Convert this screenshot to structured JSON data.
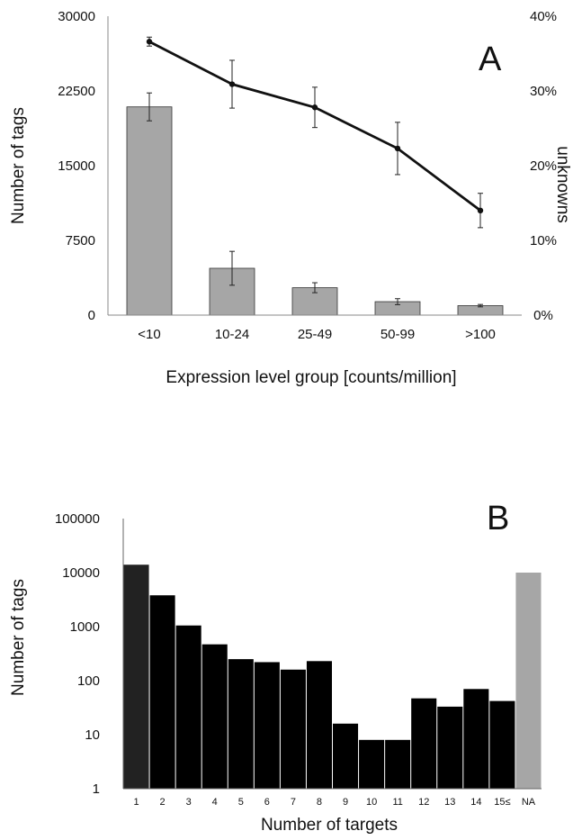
{
  "chart_data": [
    {
      "panel_label": "A",
      "type": "bar",
      "categories": [
        "<10",
        "10-24",
        "25-49",
        "50-99",
        ">100"
      ],
      "series": [
        {
          "values": [
            20900,
            4700,
            2750,
            1350,
            950
          ],
          "errors": [
            1400,
            1700,
            500,
            300,
            120
          ]
        }
      ],
      "line_series": [
        {
          "values": [
            0.366,
            0.309,
            0.278,
            0.223,
            0.14
          ],
          "errors": [
            0.006,
            0.032,
            0.027,
            0.035,
            0.023
          ]
        }
      ],
      "xlabel": "Expression level group [counts/million]",
      "ylabel": "Number of tags",
      "ylabel_right": "unknowns",
      "ylim": [
        0,
        30000
      ],
      "yticks": [
        "0",
        "7500",
        "15000",
        "22500",
        "30000"
      ],
      "ylim_right": [
        0,
        0.4
      ],
      "yticks_right": [
        "0%",
        "10%",
        "20%",
        "30%",
        "40%"
      ],
      "colors": {
        "bars": "#a6a6a6",
        "line": "#111111"
      }
    },
    {
      "panel_label": "B",
      "type": "bar",
      "categories": [
        "1",
        "2",
        "3",
        "4",
        "5",
        "6",
        "7",
        "8",
        "9",
        "10",
        "11",
        "12",
        "13",
        "14",
        "15≤",
        "NA"
      ],
      "series": [
        {
          "values": [
            14000,
            3800,
            1050,
            470,
            250,
            220,
            160,
            230,
            16,
            8,
            8,
            47,
            33,
            70,
            42,
            10000
          ]
        }
      ],
      "xlabel": "Number of targets",
      "ylabel": "Number of tags",
      "yscale": "log",
      "ylim": [
        1,
        100000
      ],
      "yticks": [
        "1",
        "10",
        "100",
        "1000",
        "10000",
        "100000"
      ],
      "colors": {
        "bars": "#000000",
        "first_bar": "#222222",
        "na_bar": "#a6a6a6"
      }
    }
  ]
}
